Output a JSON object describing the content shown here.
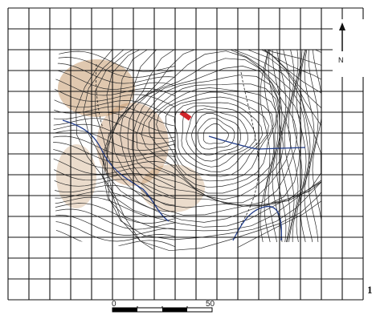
{
  "map": {
    "north_label": "N",
    "figure_number": "1",
    "scale": {
      "start_label": "0",
      "end_label": "50"
    },
    "north_arrow_icon": "north-arrow-icon",
    "colors": {
      "contour": "#2b2b2b",
      "terrain_tint": "#b8865a",
      "river": "#1f3b8a",
      "marker": "#d2232a",
      "grid": "#111111"
    }
  }
}
